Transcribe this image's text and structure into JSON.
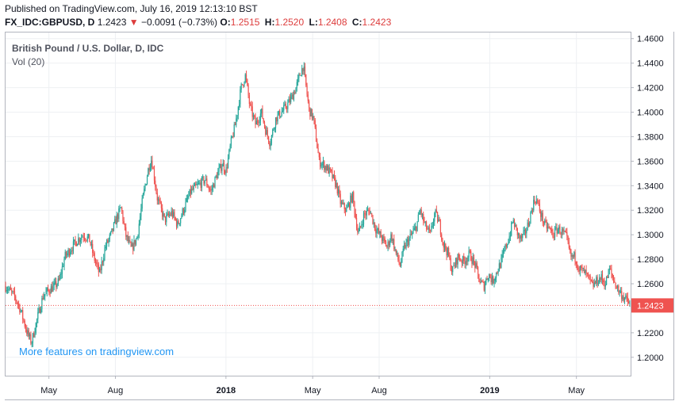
{
  "header": {
    "published": "Published on TradingView.com, July 16, 2019 12:13:10 BST",
    "symbol": "FX_IDC:GBPUSD, D",
    "last": "1.2423",
    "change": "−0.0091 (−0.73%)",
    "o_label": "O:",
    "o_value": "1.2515",
    "h_label": "H:",
    "h_value": "1.2520",
    "l_label": "L:",
    "l_value": "1.2408",
    "c_label": "C:",
    "c_value": "1.2423"
  },
  "chart_data": {
    "type": "candlestick",
    "title": "British Pound / U.S. Dollar, D, IDC",
    "indicator": "Vol (20)",
    "promo": "More features on tradingview.com",
    "ylim": [
      1.185,
      1.465
    ],
    "yticks": [
      "1.4600",
      "1.4400",
      "1.4200",
      "1.4000",
      "1.3800",
      "1.3600",
      "1.3400",
      "1.3200",
      "1.3000",
      "1.2800",
      "1.2600",
      "1.2400",
      "1.2200",
      "1.2000"
    ],
    "xticks": [
      {
        "label": "May",
        "bold": false,
        "day": 120
      },
      {
        "label": "Aug",
        "bold": false,
        "day": 212
      },
      {
        "label": "2018",
        "bold": true,
        "day": 365
      },
      {
        "label": "May",
        "bold": false,
        "day": 485
      },
      {
        "label": "Aug",
        "bold": false,
        "day": 577
      },
      {
        "label": "2019",
        "bold": true,
        "day": 730
      },
      {
        "label": "May",
        "bold": false,
        "day": 850
      }
    ],
    "x_start_day": 60,
    "x_end_day": 925,
    "last_price": "1.2423",
    "last_price_value": 1.2423,
    "up_color": "#26a69a",
    "down_color": "#ef5350",
    "path": [
      [
        60,
        1.258
      ],
      [
        72,
        1.25
      ],
      [
        80,
        1.24
      ],
      [
        90,
        1.22
      ],
      [
        96,
        1.212
      ],
      [
        104,
        1.232
      ],
      [
        112,
        1.25
      ],
      [
        120,
        1.255
      ],
      [
        128,
        1.258
      ],
      [
        134,
        1.262
      ],
      [
        142,
        1.282
      ],
      [
        152,
        1.29
      ],
      [
        160,
        1.296
      ],
      [
        168,
        1.3
      ],
      [
        176,
        1.296
      ],
      [
        182,
        1.282
      ],
      [
        190,
        1.268
      ],
      [
        198,
        1.29
      ],
      [
        206,
        1.3
      ],
      [
        214,
        1.314
      ],
      [
        220,
        1.322
      ],
      [
        226,
        1.3
      ],
      [
        234,
        1.288
      ],
      [
        242,
        1.298
      ],
      [
        250,
        1.33
      ],
      [
        258,
        1.355
      ],
      [
        262,
        1.362
      ],
      [
        270,
        1.33
      ],
      [
        280,
        1.312
      ],
      [
        290,
        1.318
      ],
      [
        298,
        1.308
      ],
      [
        306,
        1.32
      ],
      [
        316,
        1.335
      ],
      [
        326,
        1.34
      ],
      [
        336,
        1.345
      ],
      [
        344,
        1.335
      ],
      [
        352,
        1.348
      ],
      [
        360,
        1.358
      ],
      [
        365,
        1.352
      ],
      [
        372,
        1.375
      ],
      [
        378,
        1.39
      ],
      [
        386,
        1.42
      ],
      [
        392,
        1.43
      ],
      [
        398,
        1.405
      ],
      [
        406,
        1.39
      ],
      [
        414,
        1.4
      ],
      [
        420,
        1.385
      ],
      [
        426,
        1.375
      ],
      [
        434,
        1.395
      ],
      [
        442,
        1.4
      ],
      [
        450,
        1.406
      ],
      [
        456,
        1.412
      ],
      [
        462,
        1.42
      ],
      [
        468,
        1.432
      ],
      [
        472,
        1.438
      ],
      [
        480,
        1.402
      ],
      [
        486,
        1.395
      ],
      [
        494,
        1.36
      ],
      [
        502,
        1.356
      ],
      [
        510,
        1.35
      ],
      [
        518,
        1.34
      ],
      [
        524,
        1.325
      ],
      [
        532,
        1.32
      ],
      [
        540,
        1.332
      ],
      [
        548,
        1.3
      ],
      [
        556,
        1.316
      ],
      [
        564,
        1.32
      ],
      [
        572,
        1.305
      ],
      [
        580,
        1.298
      ],
      [
        588,
        1.29
      ],
      [
        594,
        1.3
      ],
      [
        600,
        1.285
      ],
      [
        606,
        1.275
      ],
      [
        612,
        1.29
      ],
      [
        620,
        1.298
      ],
      [
        628,
        1.306
      ],
      [
        634,
        1.32
      ],
      [
        640,
        1.308
      ],
      [
        648,
        1.3
      ],
      [
        654,
        1.318
      ],
      [
        660,
        1.31
      ],
      [
        666,
        1.292
      ],
      [
        672,
        1.285
      ],
      [
        678,
        1.27
      ],
      [
        686,
        1.282
      ],
      [
        694,
        1.278
      ],
      [
        702,
        1.284
      ],
      [
        710,
        1.275
      ],
      [
        716,
        1.262
      ],
      [
        722,
        1.258
      ],
      [
        728,
        1.268
      ],
      [
        734,
        1.262
      ],
      [
        740,
        1.27
      ],
      [
        746,
        1.278
      ],
      [
        752,
        1.29
      ],
      [
        758,
        1.3
      ],
      [
        762,
        1.312
      ],
      [
        766,
        1.305
      ],
      [
        772,
        1.296
      ],
      [
        778,
        1.3
      ],
      [
        784,
        1.31
      ],
      [
        790,
        1.325
      ],
      [
        794,
        1.33
      ],
      [
        800,
        1.318
      ],
      [
        806,
        1.308
      ],
      [
        812,
        1.305
      ],
      [
        818,
        1.3
      ],
      [
        824,
        1.305
      ],
      [
        830,
        1.302
      ],
      [
        836,
        1.298
      ],
      [
        842,
        1.282
      ],
      [
        848,
        1.282
      ],
      [
        854,
        1.272
      ],
      [
        860,
        1.27
      ],
      [
        866,
        1.265
      ],
      [
        872,
        1.258
      ],
      [
        878,
        1.262
      ],
      [
        884,
        1.265
      ],
      [
        890,
        1.26
      ],
      [
        896,
        1.272
      ],
      [
        902,
        1.262
      ],
      [
        908,
        1.255
      ],
      [
        914,
        1.25
      ],
      [
        920,
        1.246
      ],
      [
        925,
        1.2423
      ]
    ]
  }
}
